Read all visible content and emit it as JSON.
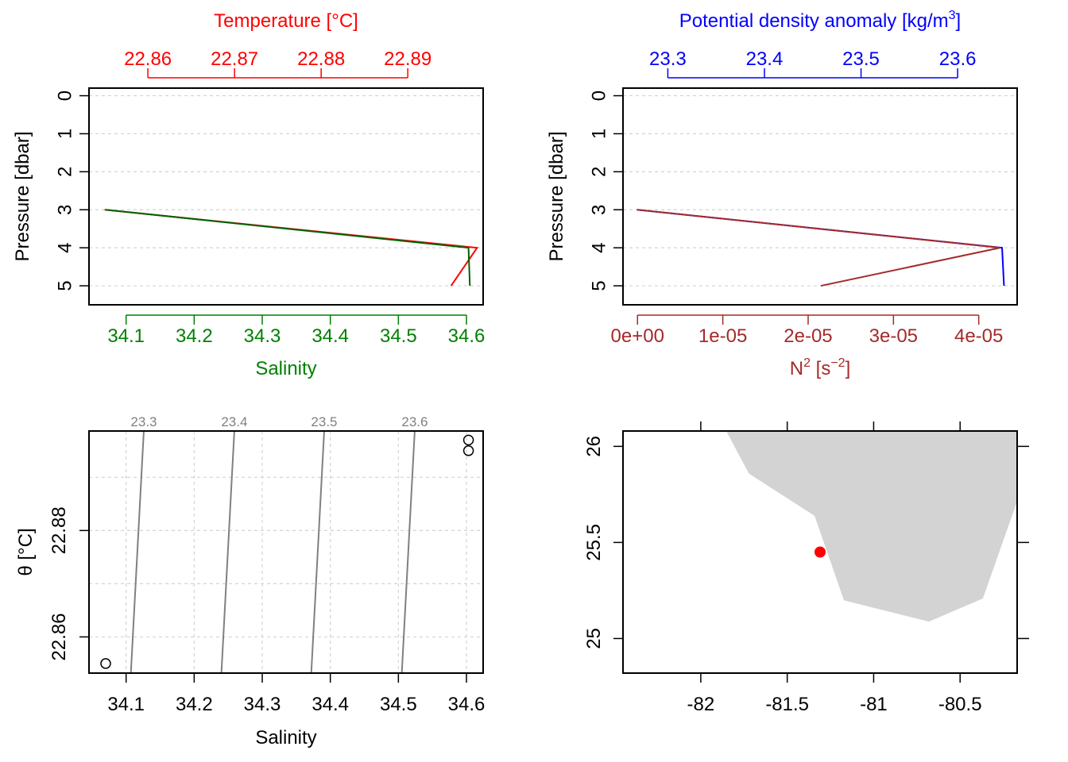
{
  "chart_data": [
    {
      "type": "line",
      "panel": "temperature-salinity-profile",
      "top_axis_title": "Temperature [°C]",
      "top_axis_color": "#ff0000",
      "top_ticks": [
        "22.86",
        "22.87",
        "22.88",
        "22.89"
      ],
      "top_tick_values": [
        22.86,
        22.87,
        22.88,
        22.89
      ],
      "top_range": [
        22.8532,
        22.8987
      ],
      "bottom_axis_title": "Salinity",
      "bottom_axis_color": "#008000",
      "bottom_ticks": [
        "34.1",
        "34.2",
        "34.3",
        "34.4",
        "34.5",
        "34.6"
      ],
      "bottom_tick_values": [
        34.1,
        34.2,
        34.3,
        34.4,
        34.5,
        34.6
      ],
      "bottom_range": [
        34.0455,
        34.6245
      ],
      "ylabel": "Pressure [dbar]",
      "y_ticks": [
        "0",
        "1",
        "2",
        "3",
        "4",
        "5"
      ],
      "y_tick_values": [
        0,
        1,
        2,
        3,
        4,
        5
      ],
      "y_range": [
        5.5,
        -0.2
      ],
      "y_reversed": true,
      "grid": true,
      "series": [
        {
          "color": "#ff0000",
          "axis": "top",
          "points": [
            [
              22.855,
              3
            ],
            [
              22.898,
              4
            ],
            [
              22.895,
              5
            ]
          ]
        },
        {
          "color": "#006400",
          "axis": "bottom",
          "points": [
            [
              34.07,
              3
            ],
            [
              34.603,
              4
            ],
            [
              34.605,
              5
            ]
          ]
        }
      ]
    },
    {
      "type": "line",
      "panel": "density-n2-profile",
      "top_axis_title": "Potential density anomaly [kg/m",
      "top_axis_title_sup": "3",
      "top_axis_title_end": "]",
      "top_axis_color": "#0000ff",
      "top_ticks": [
        "23.3",
        "23.4",
        "23.5",
        "23.6"
      ],
      "top_tick_values": [
        23.3,
        23.4,
        23.5,
        23.6
      ],
      "top_range": [
        23.2536,
        23.6616
      ],
      "bottom_axis_title": "N",
      "bottom_axis_title_sup": "2",
      "bottom_axis_title_mid": " [s",
      "bottom_axis_title_sup2": "−2",
      "bottom_axis_title_end": "]",
      "bottom_axis_color": "#a52a2a",
      "bottom_ticks": [
        "0e+00",
        "1e-05",
        "2e-05",
        "3e-05",
        "4e-05"
      ],
      "bottom_tick_values": [
        0,
        1e-05,
        2e-05,
        3e-05,
        4e-05
      ],
      "bottom_range": [
        -1.7e-06,
        4.45e-05
      ],
      "ylabel": "Pressure [dbar]",
      "y_ticks": [
        "0",
        "1",
        "2",
        "3",
        "4",
        "5"
      ],
      "y_tick_values": [
        0,
        1,
        2,
        3,
        4,
        5
      ],
      "y_range": [
        5.5,
        -0.2
      ],
      "y_reversed": true,
      "grid": true,
      "series": [
        {
          "color": "#0000ff",
          "axis": "top",
          "points": [
            [
              23.268,
              3
            ],
            [
              23.646,
              4
            ],
            [
              23.648,
              5
            ]
          ]
        },
        {
          "color": "#a52a2a",
          "axis": "bottom",
          "points": [
            [
              0.0,
              3
            ],
            [
              4.25e-05,
              4
            ],
            [
              2.15e-05,
              5
            ]
          ]
        }
      ]
    },
    {
      "type": "scatter",
      "panel": "ts-diagram",
      "xlabel": "Salinity",
      "ylabel": "θ [°C]",
      "x_ticks": [
        "34.1",
        "34.2",
        "34.3",
        "34.4",
        "34.5",
        "34.6"
      ],
      "x_tick_values": [
        34.1,
        34.2,
        34.3,
        34.4,
        34.5,
        34.6
      ],
      "x_range": [
        34.0455,
        34.6245
      ],
      "y_ticks": [
        "22.86",
        "22.88"
      ],
      "y_tick_values": [
        22.86,
        22.88
      ],
      "y_range": [
        22.8532,
        22.8987
      ],
      "grid_y_values": [
        22.86,
        22.87,
        22.88,
        22.89
      ],
      "grid": true,
      "isopycnal_color": "#808080",
      "isopycnals": [
        {
          "label": "23.3",
          "points": [
            [
              34.107,
              22.8532
            ],
            [
              34.126,
              22.8987
            ]
          ]
        },
        {
          "label": "23.4",
          "points": [
            [
              34.24,
              22.8532
            ],
            [
              34.259,
              22.8987
            ]
          ]
        },
        {
          "label": "23.5",
          "points": [
            [
              34.372,
              22.8532
            ],
            [
              34.391,
              22.8987
            ]
          ]
        },
        {
          "label": "23.6",
          "points": [
            [
              34.505,
              22.8532
            ],
            [
              34.524,
              22.8987
            ]
          ]
        }
      ],
      "points": [
        [
          34.07,
          22.855
        ],
        [
          34.603,
          22.897
        ],
        [
          34.603,
          22.895
        ]
      ]
    },
    {
      "type": "map",
      "panel": "station-map",
      "x_ticks": [
        "-82",
        "-81.5",
        "-81",
        "-80.5"
      ],
      "x_tick_values": [
        -82,
        -81.5,
        -81,
        -80.5
      ],
      "x_range": [
        -82.45,
        -80.17
      ],
      "y_ticks": [
        "25",
        "25.5",
        "26"
      ],
      "y_tick_values": [
        25,
        25.5,
        26
      ],
      "y_range": [
        24.82,
        26.08
      ],
      "land_color": "#d3d3d3",
      "station_color": "#ff0000",
      "station": [
        -81.31,
        25.45
      ],
      "land": [
        [
          -81.85,
          26.08
        ],
        [
          -81.72,
          25.86
        ],
        [
          -81.34,
          25.64
        ],
        [
          -81.17,
          25.2
        ],
        [
          -80.68,
          25.09
        ],
        [
          -80.37,
          25.21
        ],
        [
          -80.17,
          25.72
        ],
        [
          -80.17,
          26.08
        ]
      ]
    }
  ]
}
